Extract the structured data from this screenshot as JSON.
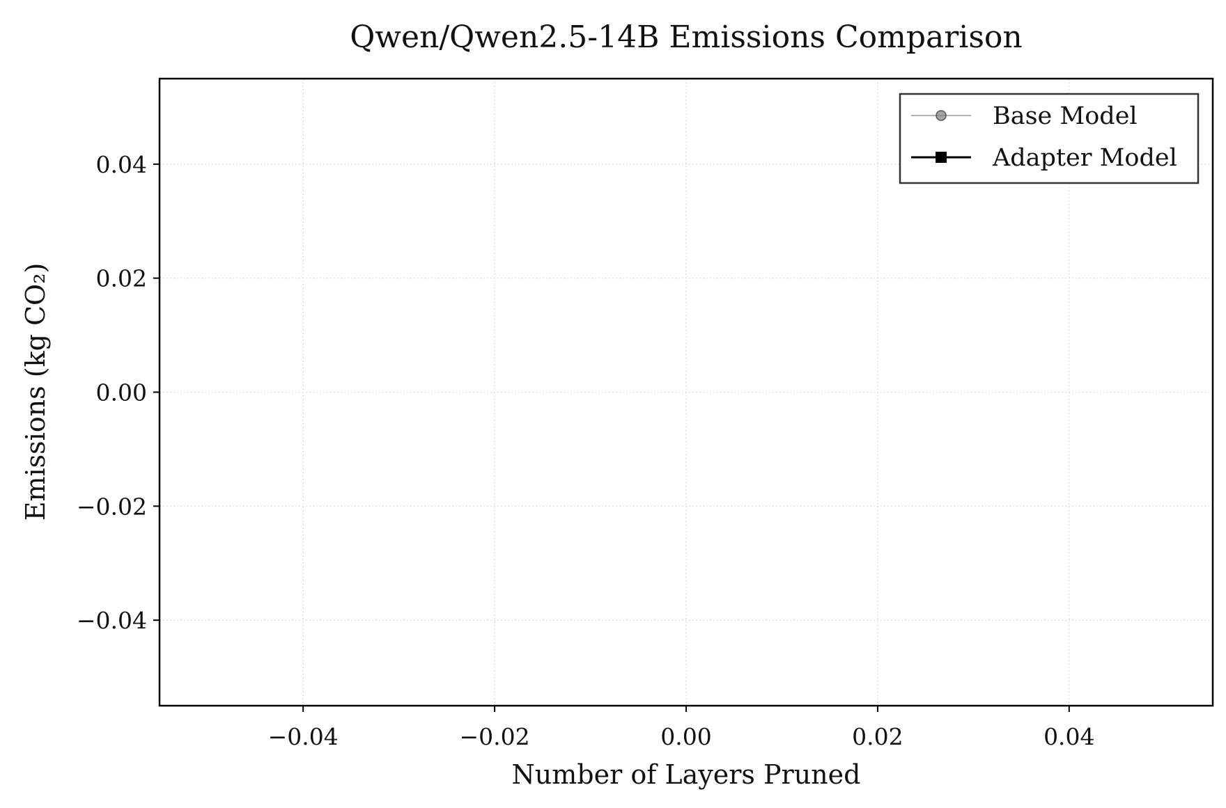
{
  "chart_data": {
    "type": "line",
    "title": "Qwen/Qwen2.5-14B Emissions Comparison",
    "xlabel": "Number of Layers Pruned",
    "ylabel": "Emissions (kg CO₂)",
    "xlim": [
      -0.055,
      0.055
    ],
    "ylim": [
      -0.055,
      0.055
    ],
    "x_ticks": [
      -0.04,
      -0.02,
      0.0,
      0.02,
      0.04
    ],
    "y_ticks": [
      -0.04,
      -0.02,
      0.0,
      0.02,
      0.04
    ],
    "x_tick_labels": [
      "−0.04",
      "−0.02",
      "0.00",
      "0.02",
      "0.04"
    ],
    "y_tick_labels": [
      "−0.04",
      "−0.02",
      "0.00",
      "0.02",
      "0.04"
    ],
    "grid": true,
    "legend_position": "top-right",
    "series": [
      {
        "name": "Base Model",
        "x": [],
        "y": [],
        "marker": "circle",
        "color": "#7f7f7f"
      },
      {
        "name": "Adapter Model",
        "x": [],
        "y": [],
        "marker": "square",
        "color": "#000000"
      }
    ]
  }
}
